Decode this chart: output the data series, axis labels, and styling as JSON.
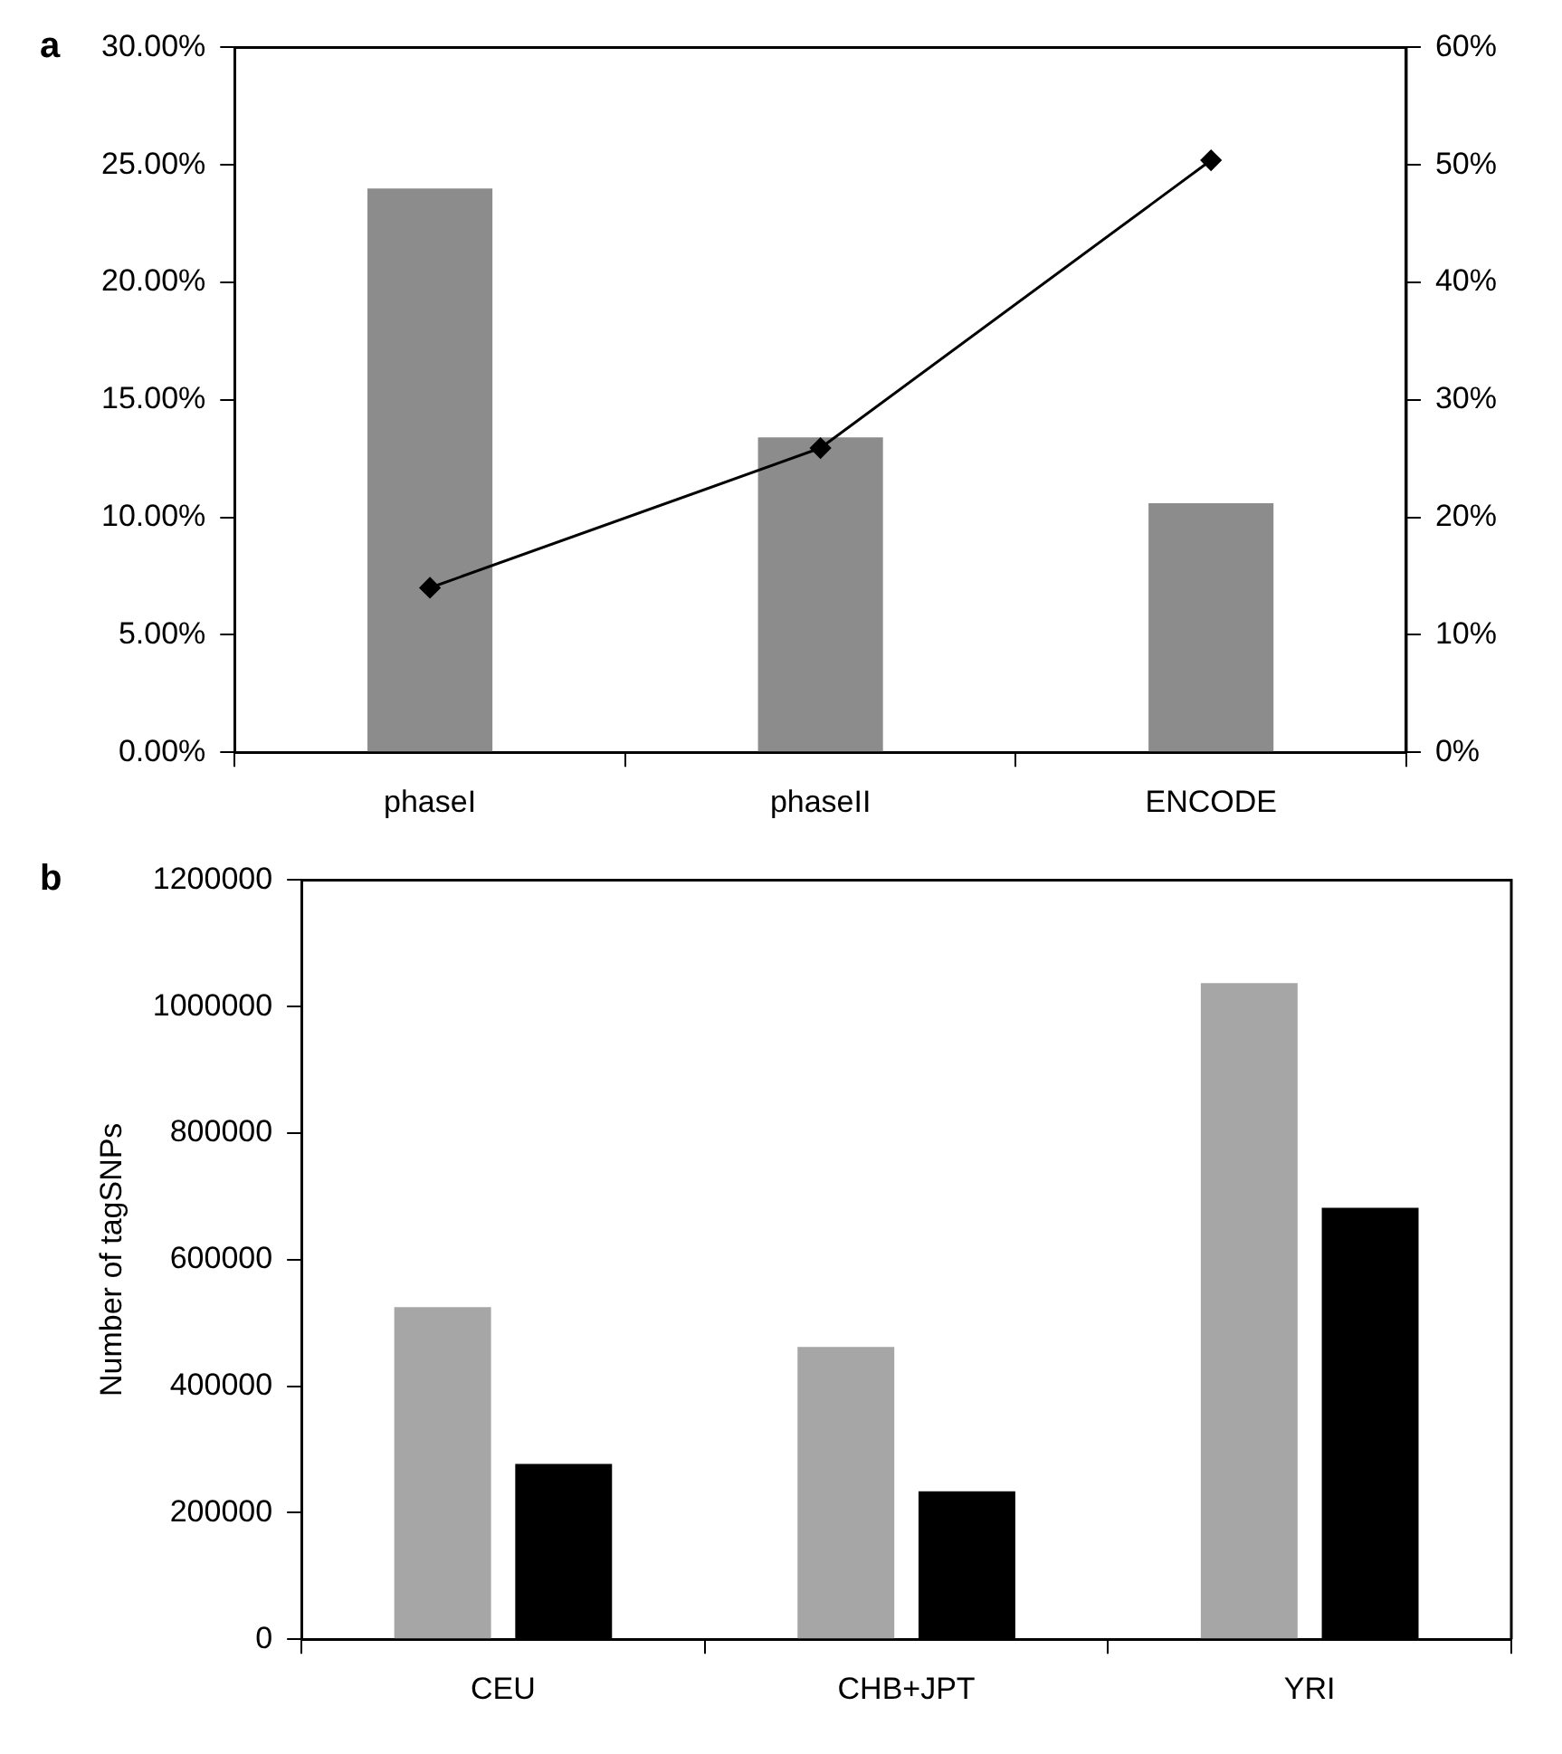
{
  "chart_data": [
    {
      "type": "bar",
      "title": "a",
      "categories": [
        "phaseI",
        "phaseII",
        "ENCODE"
      ],
      "series": [
        {
          "color": "#8c8c8c",
          "values": [
            24.0,
            13.4,
            10.6
          ]
        },
        {
          "type": "line",
          "axis": "y2",
          "color": "#000000",
          "values": [
            14,
            25.9,
            50.4
          ]
        }
      ],
      "ylim": [
        0,
        30
      ],
      "yticks": [
        {
          "value": 0,
          "label": "0.00%"
        },
        {
          "value": 5,
          "label": "5.00%"
        },
        {
          "value": 10,
          "label": "10.00%"
        },
        {
          "value": 15,
          "label": "15.00%"
        },
        {
          "value": 20,
          "label": "20.00%"
        },
        {
          "value": 25,
          "label": "25.00%"
        },
        {
          "value": 30,
          "label": "30.00%"
        }
      ],
      "y2lim": [
        0,
        60
      ],
      "y2ticks": [
        {
          "value": 0,
          "label": "0%"
        },
        {
          "value": 10,
          "label": "10%"
        },
        {
          "value": 20,
          "label": "20%"
        },
        {
          "value": 30,
          "label": "30%"
        },
        {
          "value": 40,
          "label": "40%"
        },
        {
          "value": 50,
          "label": "50%"
        },
        {
          "value": 60,
          "label": "60%"
        }
      ],
      "marker": "diamond",
      "line_style": "solid",
      "grid": false,
      "legend": false
    },
    {
      "type": "bar",
      "title": "b",
      "ylabel": "Number of tagSNPs",
      "categories": [
        "CEU",
        "CHB+JPT",
        "YRI"
      ],
      "series": [
        {
          "color": "#a6a6a6",
          "values": [
            525000,
            462000,
            1037000
          ]
        },
        {
          "color": "#000000",
          "values": [
            277000,
            234000,
            682000
          ]
        }
      ],
      "ylim": [
        0,
        1200000
      ],
      "yticks": [
        0,
        200000,
        400000,
        600000,
        800000,
        1000000,
        1200000
      ],
      "grid": false,
      "legend": false
    }
  ]
}
